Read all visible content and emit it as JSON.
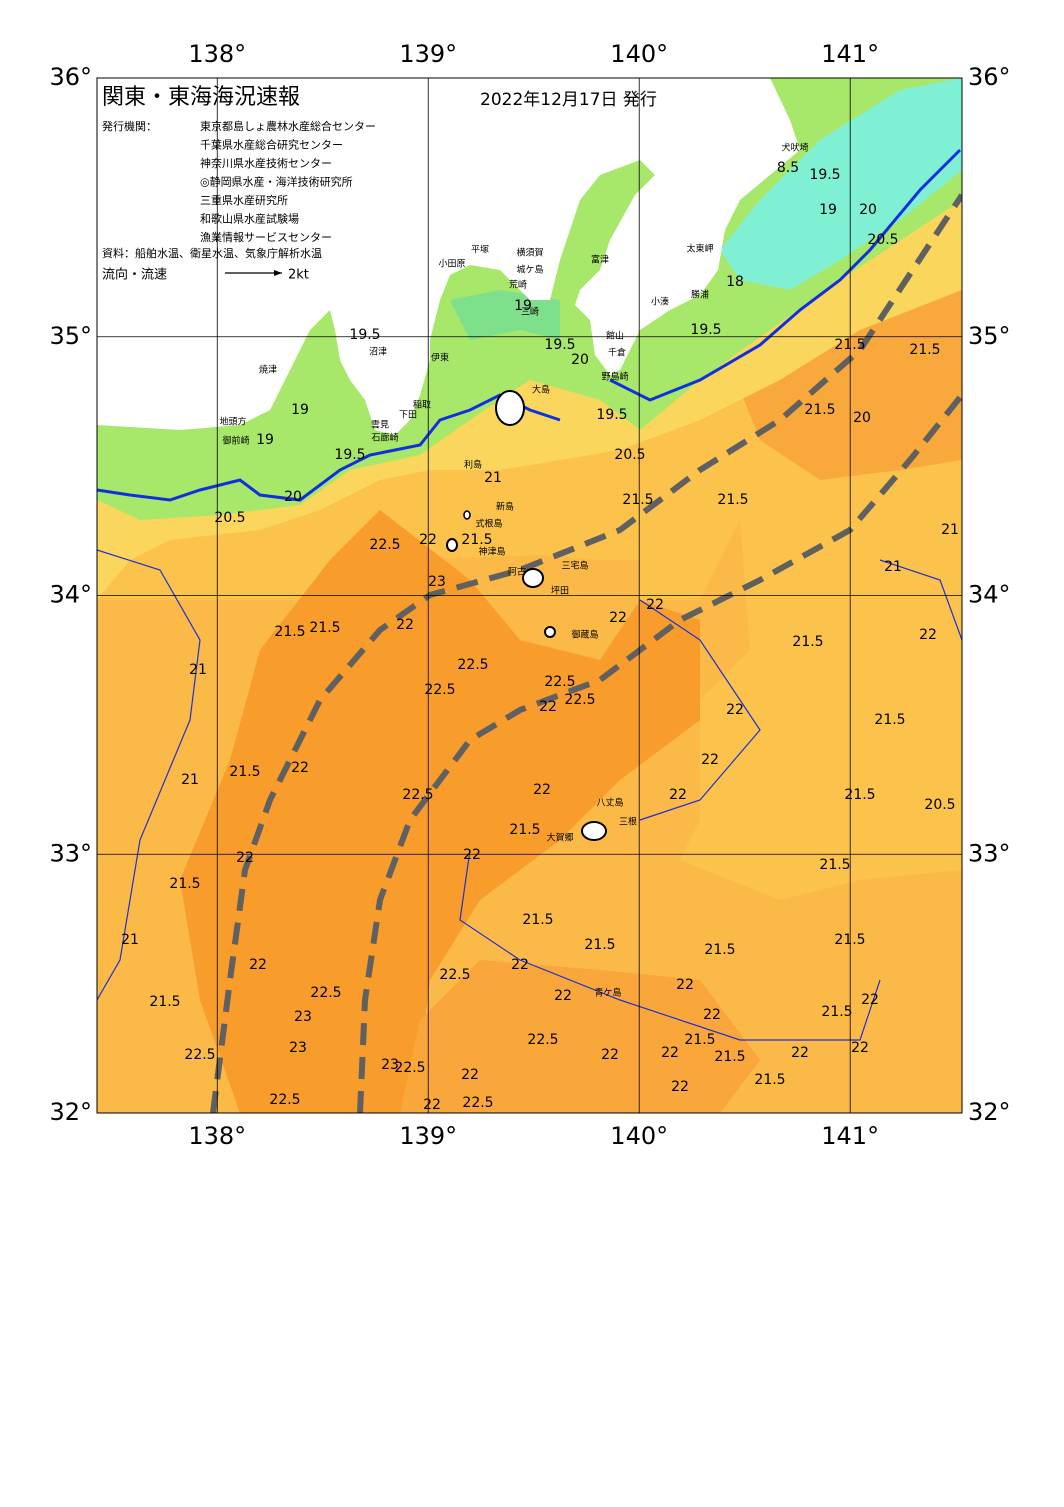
{
  "header": {
    "title": "関東・東海海況速報",
    "date": "2022年12月17日 発行",
    "issuer_label": "発行機関：",
    "issuers": [
      "東京都島しょ農林水産総合センター",
      "千葉県水産総合研究センター",
      "神奈川県水産技術センター",
      "◎静岡県水産・海洋技術研究所",
      "三重県水産研究所",
      "和歌山県水産試験場",
      "漁業情報サービスセンター"
    ],
    "source": "資料：船舶水温、衛星水温、気象庁解析水温",
    "flow_label": "流向・流速",
    "flow_scale": "2kt"
  },
  "map": {
    "lonlim": [
      137.43,
      141.53
    ],
    "latlim": [
      32,
      36
    ],
    "lonticks": [
      {
        "value": 138,
        "label": "138°"
      },
      {
        "value": 139,
        "label": "139°"
      },
      {
        "value": 140,
        "label": "140°"
      },
      {
        "value": 141,
        "label": "141°"
      }
    ],
    "latticks": [
      {
        "value": 32,
        "label": "32°"
      },
      {
        "value": 33,
        "label": "33°"
      },
      {
        "value": 34,
        "label": "34°"
      },
      {
        "value": 35,
        "label": "35°"
      },
      {
        "value": 36,
        "label": "36°"
      }
    ],
    "places": [
      "犬吠埼",
      "太東岬",
      "勝浦",
      "小湊",
      "館山",
      "千倉",
      "野島崎",
      "富津",
      "横須賀",
      "城ケ島",
      "荒崎",
      "三崎",
      "平塚",
      "小田原",
      "大島",
      "伊東",
      "稲取",
      "下田",
      "雲見",
      "石廊崎",
      "沼津",
      "焼津",
      "地頭方",
      "御前崎",
      "利島",
      "新島",
      "式根島",
      "神津島",
      "三宅島",
      "阿古",
      "坪田",
      "御蔵島",
      "八丈島",
      "三根",
      "大賀郷",
      "青ケ島"
    ],
    "isotherm_labels": [
      "8.5",
      "19.5",
      "19",
      "20",
      "20.5",
      "18",
      "19.5",
      "21.5",
      "21.5",
      "21.5",
      "20",
      "20.5",
      "19.5",
      "20",
      "19.5",
      "19",
      "19.5",
      "19",
      "19",
      "19.5",
      "20",
      "20.5",
      "21",
      "21.5",
      "21.5",
      "21.5",
      "22.5",
      "22",
      "23",
      "21",
      "21",
      "22",
      "22",
      "21.5",
      "22",
      "21.5",
      "21.5",
      "22",
      "21",
      "22.5",
      "22.5",
      "22.5",
      "22",
      "22.5",
      "22",
      "21.5",
      "21.5",
      "22",
      "21",
      "22",
      "22",
      "22.5",
      "22",
      "21.5",
      "20.5",
      "21.5",
      "22",
      "22",
      "21.5",
      "21.5",
      "21",
      "21.5",
      "21.5",
      "21.5",
      "21.5",
      "22",
      "22.5",
      "22",
      "22.5",
      "21.5",
      "22",
      "22",
      "22",
      "21.5",
      "23",
      "22",
      "23",
      "22.5",
      "22",
      "22",
      "21.5",
      "21.5",
      "22",
      "22",
      "22.5",
      "23",
      "22.5",
      "22",
      "21.5",
      "22",
      "22.5",
      "22.5",
      "22"
    ]
  }
}
